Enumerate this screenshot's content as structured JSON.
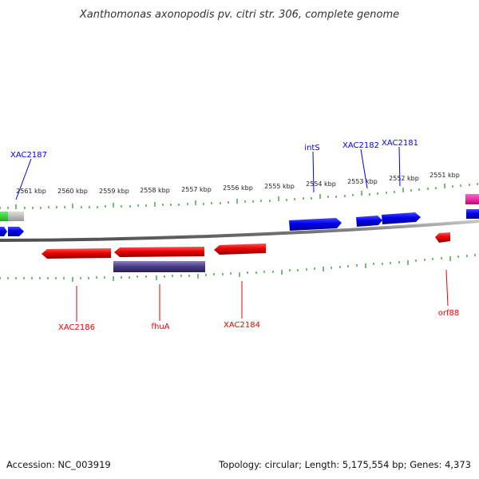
{
  "title": "Xanthomonas axonopodis pv. citri str. 306, complete genome",
  "footer": {
    "accession": "Accession: NC_003919",
    "topology": "Topology: circular; Length: 5,175,554 bp; Genes: 4,373"
  },
  "colors": {
    "forward": "#0000ee",
    "reverse": "#ee0000",
    "backbone": "#808080",
    "tick": "#228b22",
    "rna": "#4b3d8a"
  },
  "ticks": [
    "2561 kbp",
    "2560 kbp",
    "2559 kbp",
    "2558 kbp",
    "2557 kbp",
    "2556 kbp",
    "2555 kbp",
    "2554 kbp",
    "2553 kbp",
    "2552 kbp",
    "2551 kbp"
  ],
  "genes": {
    "forward": [
      "XAC2187",
      "intS",
      "XAC2182",
      "XAC2181"
    ],
    "reverse": [
      "XAC2186",
      "fhuA",
      "XAC2184",
      "orf88"
    ]
  }
}
